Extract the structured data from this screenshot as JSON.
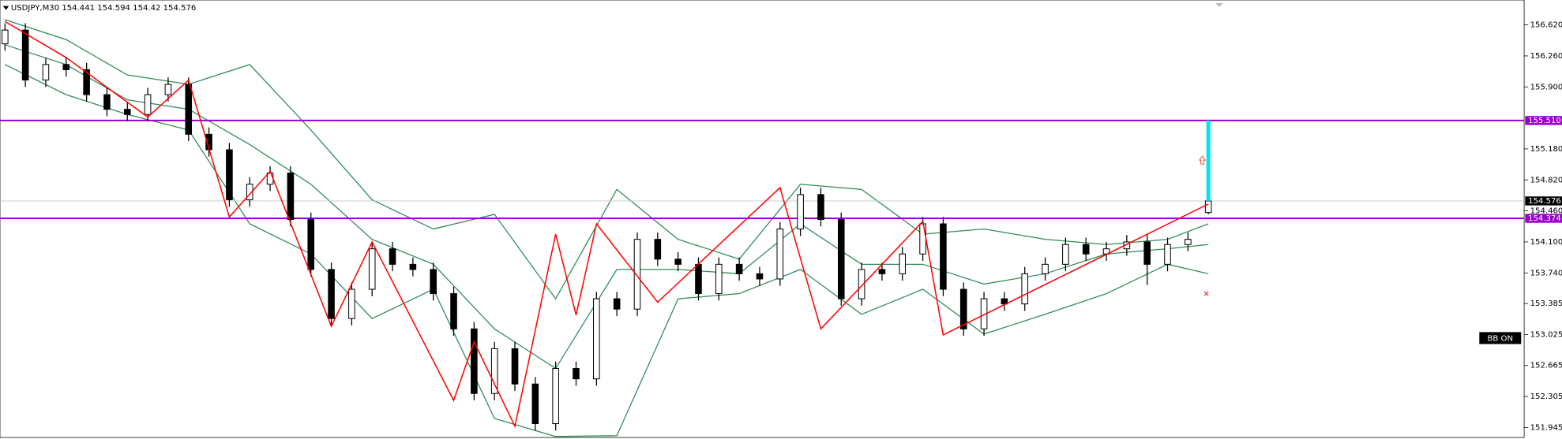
{
  "chart_data": {
    "type": "candlestick",
    "symbol": "USDJPY,M30",
    "ohlc": [
      [
        156.4,
        156.64,
        156.32,
        156.56
      ],
      [
        156.56,
        156.64,
        155.9,
        155.98
      ],
      [
        155.98,
        156.24,
        155.9,
        156.16
      ],
      [
        156.16,
        156.24,
        156.02,
        156.1
      ],
      [
        156.1,
        156.18,
        155.73,
        155.81
      ],
      [
        155.81,
        155.89,
        155.56,
        155.64
      ],
      [
        155.64,
        155.72,
        155.5,
        155.58
      ],
      [
        155.58,
        155.89,
        155.5,
        155.81
      ],
      [
        155.81,
        156.01,
        155.73,
        155.93
      ],
      [
        155.93,
        156.01,
        155.27,
        155.35
      ],
      [
        155.35,
        155.43,
        155.09,
        155.17
      ],
      [
        155.17,
        155.25,
        154.51,
        154.59
      ],
      [
        154.59,
        154.85,
        154.51,
        154.77
      ],
      [
        154.77,
        154.98,
        154.69,
        154.9
      ],
      [
        154.9,
        154.98,
        154.28,
        154.36
      ],
      [
        154.36,
        154.44,
        153.7,
        153.78
      ],
      [
        153.78,
        153.86,
        153.13,
        153.21
      ],
      [
        153.21,
        153.63,
        153.13,
        153.55
      ],
      [
        153.55,
        154.1,
        153.47,
        154.02
      ],
      [
        154.02,
        154.1,
        153.76,
        153.84
      ],
      [
        153.84,
        153.92,
        153.7,
        153.78
      ],
      [
        153.78,
        153.86,
        153.42,
        153.5
      ],
      [
        153.5,
        153.58,
        153.01,
        153.09
      ],
      [
        153.09,
        153.17,
        152.26,
        152.34
      ],
      [
        152.34,
        152.94,
        152.26,
        152.86
      ],
      [
        152.86,
        152.94,
        152.37,
        152.45
      ],
      [
        152.45,
        152.53,
        151.91,
        151.99
      ],
      [
        151.99,
        152.71,
        151.91,
        152.63
      ],
      [
        152.63,
        152.71,
        152.43,
        152.51
      ],
      [
        152.51,
        153.52,
        152.43,
        153.44
      ],
      [
        153.44,
        153.52,
        153.24,
        153.32
      ],
      [
        153.32,
        154.21,
        153.24,
        154.13
      ],
      [
        154.13,
        154.21,
        153.82,
        153.9
      ],
      [
        153.9,
        153.98,
        153.76,
        153.84
      ],
      [
        153.84,
        153.92,
        153.42,
        153.5
      ],
      [
        153.5,
        153.92,
        153.42,
        153.84
      ],
      [
        153.84,
        153.92,
        153.65,
        153.73
      ],
      [
        153.73,
        153.81,
        153.59,
        153.67
      ],
      [
        153.67,
        154.33,
        153.59,
        154.25
      ],
      [
        154.25,
        154.73,
        154.17,
        154.65
      ],
      [
        154.65,
        154.73,
        154.28,
        154.36
      ],
      [
        154.36,
        154.44,
        153.36,
        153.44
      ],
      [
        153.44,
        153.86,
        153.36,
        153.78
      ],
      [
        153.78,
        153.86,
        153.65,
        153.73
      ],
      [
        153.73,
        154.04,
        153.65,
        153.96
      ],
      [
        153.96,
        154.39,
        153.88,
        154.31
      ],
      [
        154.31,
        154.39,
        153.47,
        153.55
      ],
      [
        153.55,
        153.63,
        153.01,
        153.09
      ],
      [
        153.09,
        153.52,
        153.01,
        153.44
      ],
      [
        153.44,
        153.52,
        153.3,
        153.38
      ],
      [
        153.38,
        153.81,
        153.3,
        153.73
      ],
      [
        153.73,
        153.92,
        153.65,
        153.84
      ],
      [
        153.84,
        154.15,
        153.76,
        154.07
      ],
      [
        154.07,
        154.15,
        153.88,
        153.96
      ],
      [
        153.96,
        154.1,
        153.88,
        154.02
      ],
      [
        154.02,
        154.18,
        153.94,
        154.1
      ],
      [
        154.1,
        154.18,
        153.6,
        153.84
      ],
      [
        153.84,
        154.15,
        153.76,
        154.07
      ],
      [
        154.07,
        154.21,
        153.99,
        154.13
      ],
      [
        154.441,
        154.594,
        154.42,
        154.576
      ]
    ],
    "up_color": "#ffffff",
    "down_color": "#000000",
    "ylim": [
      151.829,
      156.909
    ],
    "yticks": [
      {
        "value": 156.62,
        "label": "156.620"
      },
      {
        "value": 156.26,
        "label": "156.260"
      },
      {
        "value": 155.9,
        "label": "155.900"
      },
      {
        "value": 155.18,
        "label": "155.180"
      },
      {
        "value": 154.82,
        "label": "154.820"
      },
      {
        "value": 154.46,
        "label": "154.460"
      },
      {
        "value": 154.1,
        "label": "154.100"
      },
      {
        "value": 153.74,
        "label": "153.740"
      },
      153.385,
      153.025,
      152.665,
      152.305,
      151.945
    ],
    "bands": {
      "color": "#2e8b57",
      "x": [
        0,
        3,
        6,
        9,
        12,
        15,
        18,
        21,
        24,
        27,
        30,
        33,
        36,
        39,
        42,
        45,
        48,
        51,
        54,
        57,
        59
      ],
      "upper": [
        156.68,
        156.45,
        156.04,
        155.93,
        156.16,
        155.4,
        154.59,
        154.25,
        154.42,
        153.44,
        154.71,
        154.13,
        153.9,
        154.77,
        154.71,
        154.19,
        154.25,
        154.13,
        154.07,
        154.13,
        154.31
      ],
      "middle": [
        156.39,
        156.16,
        155.75,
        155.64,
        155.23,
        154.77,
        154.13,
        153.84,
        153.09,
        152.63,
        153.78,
        153.78,
        153.73,
        154.31,
        153.84,
        153.84,
        153.61,
        153.73,
        153.96,
        154.02,
        154.07
      ],
      "lower": [
        156.16,
        155.81,
        155.58,
        155.4,
        154.31,
        153.96,
        153.21,
        153.55,
        152.05,
        151.84,
        151.85,
        153.44,
        153.5,
        153.78,
        153.26,
        153.55,
        153.03,
        153.26,
        153.5,
        153.84,
        153.73
      ]
    },
    "zigzag": {
      "color": "#ff0000",
      "x": [
        0,
        3,
        7,
        9,
        11,
        13,
        16,
        18,
        22,
        23,
        25,
        27,
        28,
        29,
        32,
        38,
        40,
        45,
        46,
        59
      ],
      "values": [
        156.66,
        156.24,
        155.55,
        155.98,
        154.39,
        154.92,
        153.12,
        154.1,
        152.26,
        152.94,
        151.96,
        154.19,
        153.25,
        154.31,
        153.4,
        154.73,
        153.09,
        154.34,
        153.02,
        154.54
      ]
    },
    "levels": [
      {
        "value": 155.51,
        "label": "155.510",
        "color": "#9900cc"
      },
      {
        "value": 154.374,
        "color": "#9900cc"
      }
    ],
    "current_price": 154.576,
    "signal": {
      "arrow": 155.05,
      "stop": 153.5,
      "target_color": "#00e5ee",
      "arrow_color": "#ff3333"
    },
    "button": "BB ON"
  }
}
